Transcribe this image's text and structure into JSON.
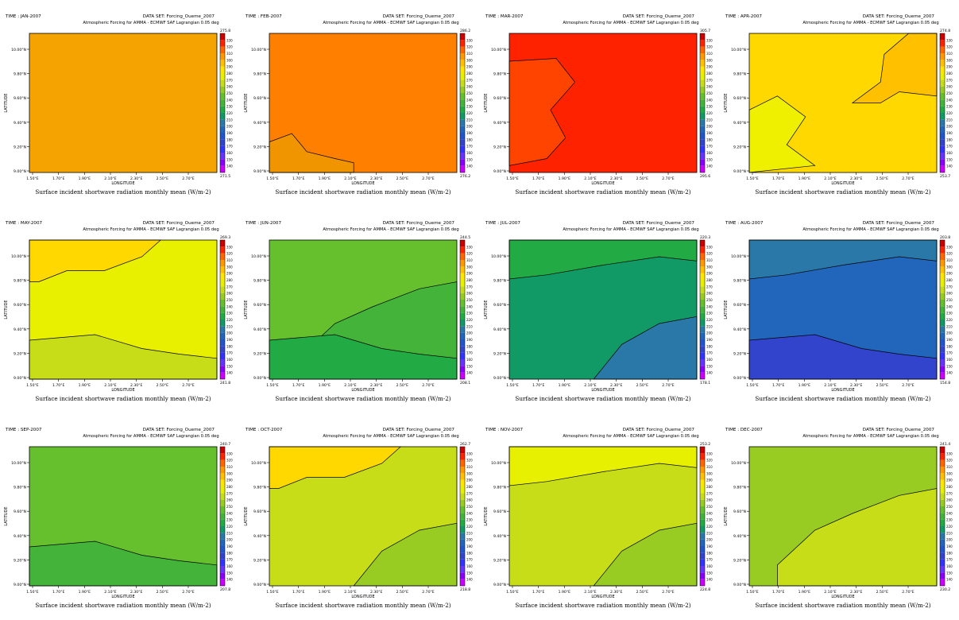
{
  "common": {
    "dataset": "DATA SET: Forcing_Oueme_2007",
    "subtitle": "Atmospheric Forcing for AMMA - ECMWF SAF Lagrangian 0.05 deg",
    "xlabel": "LONGITUDE",
    "ylabel": "LATITUDE",
    "caption": "Surface incident shortwave radiation monthly mean (W/m-2)",
    "xticks": [
      "1.50°E",
      "1.70°E",
      "1.90°E",
      "2.10°E",
      "2.30°E",
      "2.50°E",
      "2.70°E"
    ],
    "yticks": [
      "9.00°N",
      "9.20°N",
      "9.40°N",
      "9.60°N",
      "9.80°N",
      "10.00°N"
    ],
    "colorbar_levels": [
      "130",
      "140",
      "150",
      "160",
      "170",
      "180",
      "190",
      "200",
      "210",
      "220",
      "230",
      "240",
      "250",
      "260",
      "270",
      "280",
      "290",
      "300",
      "310",
      "320",
      "330"
    ],
    "colorbar_colors": [
      "#cc00ff",
      "#8a00ff",
      "#6633ff",
      "#3333ff",
      "#3344cc",
      "#2255cc",
      "#2266bb",
      "#2a78a8",
      "#119966",
      "#22aa44",
      "#44b33a",
      "#66c02e",
      "#99cc22",
      "#c6dd18",
      "#e6f000",
      "#ffe600",
      "#ffc000",
      "#ff9900",
      "#ff6600",
      "#ff2200",
      "#cc0000"
    ]
  },
  "chart_data": [
    {
      "type": "heatmap",
      "time": "TIME : JAN-2007",
      "max": "275.8",
      "min": "271.5",
      "base": "#f5a300",
      "regions": []
    },
    {
      "type": "heatmap",
      "time": "TIME : FEB-2007",
      "max": "286.2",
      "min": "276.2",
      "base": "#ff7f00",
      "regions": [
        {
          "color": "#f09400",
          "desc": "lower-left"
        }
      ]
    },
    {
      "type": "heatmap",
      "time": "TIME : MAR-2007",
      "max": "305.7",
      "min": "295.6",
      "base": "#ff2200",
      "regions": [
        {
          "color": "#ff4400",
          "desc": "left"
        }
      ]
    },
    {
      "type": "heatmap",
      "time": "TIME : APR-2007",
      "max": "274.8",
      "min": "253.7",
      "base": "#ffd800",
      "regions": [
        {
          "color": "#eef000",
          "desc": "bottom-left"
        },
        {
          "color": "#ffc000",
          "desc": "upper-right"
        }
      ]
    },
    {
      "type": "heatmap",
      "time": "TIME : MAY-2007",
      "max": "269.3",
      "min": "241.8",
      "base": "#e8f000",
      "regions": [
        {
          "color": "#ffd800",
          "desc": "top-left"
        },
        {
          "color": "#c6dd18",
          "desc": "bottom"
        }
      ]
    },
    {
      "type": "heatmap",
      "time": "TIME : JUN-2007",
      "max": "244.5",
      "min": "208.1",
      "base": "#66c02e",
      "regions": [
        {
          "color": "#44b33a",
          "desc": "lower-right"
        },
        {
          "color": "#22aa44",
          "desc": "bottom"
        }
      ]
    },
    {
      "type": "heatmap",
      "time": "TIME : JUL-2007",
      "max": "220.3",
      "min": "178.1",
      "base": "#119966",
      "regions": [
        {
          "color": "#22aa44",
          "desc": "top"
        },
        {
          "color": "#2a78a8",
          "desc": "bottom-right"
        }
      ]
    },
    {
      "type": "heatmap",
      "time": "TIME : AUG-2007",
      "max": "203.8",
      "min": "154.8",
      "base": "#2266bb",
      "regions": [
        {
          "color": "#2a78a8",
          "desc": "top"
        },
        {
          "color": "#3344cc",
          "desc": "bottom"
        }
      ]
    },
    {
      "type": "heatmap",
      "time": "TIME : SEP-2007",
      "max": "240.7",
      "min": "207.8",
      "base": "#66c02e",
      "regions": [
        {
          "color": "#44b33a",
          "desc": "bottom"
        }
      ]
    },
    {
      "type": "heatmap",
      "time": "TIME : OCT-2007",
      "max": "262.7",
      "min": "218.8",
      "base": "#c6dd18",
      "regions": [
        {
          "color": "#ffd800",
          "desc": "top-left"
        },
        {
          "color": "#99cc22",
          "desc": "bottom-right"
        }
      ]
    },
    {
      "type": "heatmap",
      "time": "TIME : NOV-2007",
      "max": "253.2",
      "min": "224.8",
      "base": "#c6dd18",
      "regions": [
        {
          "color": "#e6f000",
          "desc": "top"
        },
        {
          "color": "#99cc22",
          "desc": "bottom-right"
        }
      ]
    },
    {
      "type": "heatmap",
      "time": "TIME : DEC-2007",
      "max": "241.4",
      "min": "230.2",
      "base": "#99cc22",
      "regions": [
        {
          "color": "#c6dd18",
          "desc": "lower-right"
        }
      ]
    }
  ]
}
